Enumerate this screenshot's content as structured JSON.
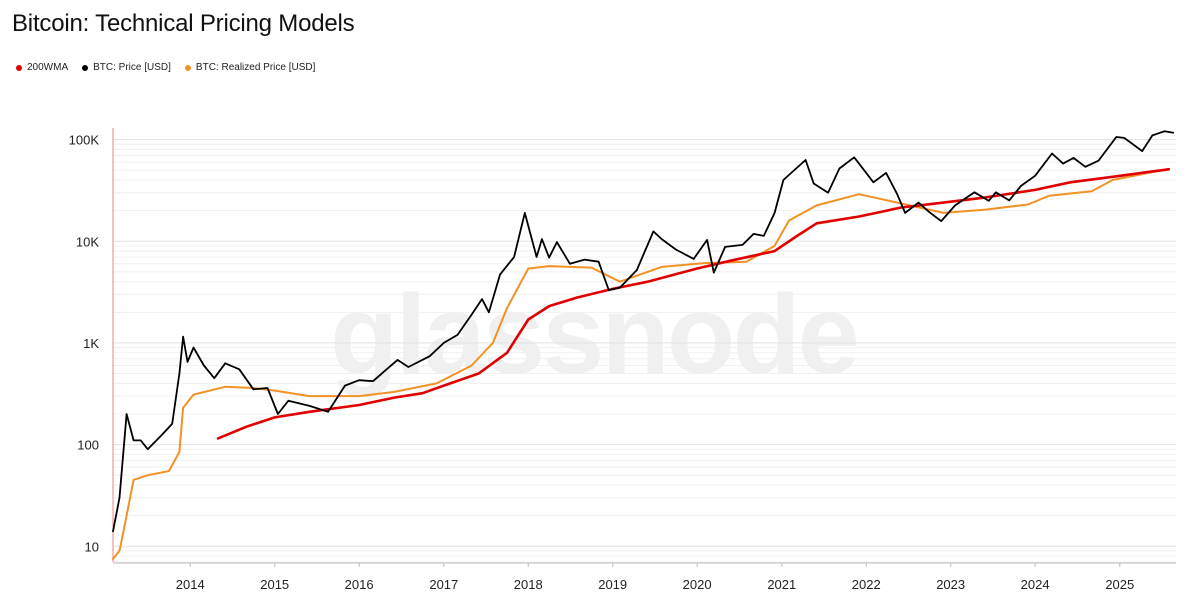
{
  "chart_data": {
    "type": "line",
    "title": "Bitcoin: Technical Pricing Models",
    "y_scale": "log",
    "ylim": [
      7,
      130000
    ],
    "xlim": [
      "2013-02-01",
      "2025-09-01"
    ],
    "grid": true,
    "legend_position": "top-left",
    "y_ticks": [
      {
        "value": 10,
        "label": "10"
      },
      {
        "value": 100,
        "label": "100"
      },
      {
        "value": 1000,
        "label": "1K"
      },
      {
        "value": 10000,
        "label": "10K"
      },
      {
        "value": 100000,
        "label": "100K"
      }
    ],
    "x_ticks": [
      "2014",
      "2015",
      "2016",
      "2017",
      "2018",
      "2019",
      "2020",
      "2021",
      "2022",
      "2023",
      "2024",
      "2025"
    ],
    "series": [
      {
        "name": "200WMA",
        "color": "#e00000",
        "points": [
          [
            "2014-05-01",
            115
          ],
          [
            "2014-09-01",
            150
          ],
          [
            "2015-01-01",
            185
          ],
          [
            "2015-06-01",
            210
          ],
          [
            "2016-01-01",
            245
          ],
          [
            "2016-06-01",
            290
          ],
          [
            "2016-10-01",
            320
          ],
          [
            "2017-01-01",
            380
          ],
          [
            "2017-06-01",
            500
          ],
          [
            "2017-10-01",
            800
          ],
          [
            "2018-01-01",
            1700
          ],
          [
            "2018-04-01",
            2300
          ],
          [
            "2018-08-01",
            2800
          ],
          [
            "2019-01-01",
            3400
          ],
          [
            "2019-06-01",
            4000
          ],
          [
            "2020-01-01",
            5400
          ],
          [
            "2020-06-01",
            6500
          ],
          [
            "2020-12-01",
            8000
          ],
          [
            "2021-03-01",
            11000
          ],
          [
            "2021-06-01",
            15000
          ],
          [
            "2021-12-01",
            17500
          ],
          [
            "2022-06-01",
            21500
          ],
          [
            "2022-12-01",
            24000
          ],
          [
            "2023-06-01",
            27000
          ],
          [
            "2024-01-01",
            32000
          ],
          [
            "2024-06-01",
            38000
          ],
          [
            "2024-12-01",
            43000
          ],
          [
            "2025-08-01",
            51000
          ]
        ]
      },
      {
        "name": "BTC: Price [USD]",
        "color": "#000000",
        "points": [
          [
            "2013-02-01",
            14
          ],
          [
            "2013-03-01",
            30
          ],
          [
            "2013-04-01",
            200
          ],
          [
            "2013-05-01",
            110
          ],
          [
            "2013-06-01",
            110
          ],
          [
            "2013-07-01",
            90
          ],
          [
            "2013-09-01",
            125
          ],
          [
            "2013-10-15",
            160
          ],
          [
            "2013-11-15",
            500
          ],
          [
            "2013-12-01",
            1150
          ],
          [
            "2013-12-20",
            650
          ],
          [
            "2014-01-15",
            900
          ],
          [
            "2014-03-01",
            600
          ],
          [
            "2014-04-15",
            450
          ],
          [
            "2014-06-01",
            630
          ],
          [
            "2014-08-01",
            550
          ],
          [
            "2014-10-01",
            350
          ],
          [
            "2014-12-01",
            360
          ],
          [
            "2015-01-15",
            200
          ],
          [
            "2015-03-01",
            270
          ],
          [
            "2015-06-01",
            240
          ],
          [
            "2015-08-20",
            210
          ],
          [
            "2015-11-01",
            380
          ],
          [
            "2016-01-01",
            430
          ],
          [
            "2016-03-01",
            420
          ],
          [
            "2016-06-15",
            680
          ],
          [
            "2016-08-01",
            580
          ],
          [
            "2016-11-01",
            740
          ],
          [
            "2017-01-01",
            1000
          ],
          [
            "2017-03-01",
            1200
          ],
          [
            "2017-05-01",
            1900
          ],
          [
            "2017-06-15",
            2700
          ],
          [
            "2017-07-15",
            2000
          ],
          [
            "2017-09-01",
            4700
          ],
          [
            "2017-11-01",
            7000
          ],
          [
            "2017-12-17",
            19000
          ],
          [
            "2018-02-06",
            7000
          ],
          [
            "2018-03-01",
            10500
          ],
          [
            "2018-04-01",
            6900
          ],
          [
            "2018-05-05",
            9800
          ],
          [
            "2018-06-30",
            6000
          ],
          [
            "2018-09-01",
            6600
          ],
          [
            "2018-11-01",
            6300
          ],
          [
            "2018-12-15",
            3300
          ],
          [
            "2019-02-01",
            3500
          ],
          [
            "2019-04-15",
            5200
          ],
          [
            "2019-06-26",
            12500
          ],
          [
            "2019-08-01",
            10500
          ],
          [
            "2019-10-01",
            8300
          ],
          [
            "2019-12-17",
            6700
          ],
          [
            "2020-02-13",
            10300
          ],
          [
            "2020-03-13",
            4900
          ],
          [
            "2020-05-01",
            8800
          ],
          [
            "2020-07-15",
            9200
          ],
          [
            "2020-09-01",
            11800
          ],
          [
            "2020-10-15",
            11300
          ],
          [
            "2020-12-01",
            19000
          ],
          [
            "2021-01-08",
            40000
          ],
          [
            "2021-02-15",
            48000
          ],
          [
            "2021-04-14",
            63000
          ],
          [
            "2021-05-19",
            37000
          ],
          [
            "2021-07-20",
            30000
          ],
          [
            "2021-09-07",
            52000
          ],
          [
            "2021-11-10",
            67000
          ],
          [
            "2022-01-01",
            47000
          ],
          [
            "2022-02-01",
            38000
          ],
          [
            "2022-03-28",
            47000
          ],
          [
            "2022-05-15",
            29000
          ],
          [
            "2022-06-18",
            19000
          ],
          [
            "2022-08-15",
            24000
          ],
          [
            "2022-10-01",
            19300
          ],
          [
            "2022-11-21",
            15800
          ],
          [
            "2023-01-20",
            22500
          ],
          [
            "2023-04-14",
            30300
          ],
          [
            "2023-06-15",
            25000
          ],
          [
            "2023-07-15",
            30300
          ],
          [
            "2023-09-11",
            25200
          ],
          [
            "2023-11-01",
            35000
          ],
          [
            "2024-01-01",
            44000
          ],
          [
            "2024-03-14",
            73000
          ],
          [
            "2024-05-01",
            58000
          ],
          [
            "2024-06-15",
            66000
          ],
          [
            "2024-08-05",
            54000
          ],
          [
            "2024-10-01",
            62000
          ],
          [
            "2024-12-17",
            106000
          ],
          [
            "2025-01-20",
            104000
          ],
          [
            "2025-04-08",
            77000
          ],
          [
            "2025-05-22",
            110000
          ],
          [
            "2025-07-14",
            121000
          ],
          [
            "2025-08-20",
            117000
          ]
        ]
      },
      {
        "name": "BTC: Realized Price [USD]",
        "color": "#f29224",
        "points": [
          [
            "2013-02-01",
            7.5
          ],
          [
            "2013-03-01",
            9
          ],
          [
            "2013-04-01",
            20
          ],
          [
            "2013-05-01",
            45
          ],
          [
            "2013-07-01",
            50
          ],
          [
            "2013-10-01",
            55
          ],
          [
            "2013-11-15",
            85
          ],
          [
            "2013-12-01",
            230
          ],
          [
            "2014-01-15",
            310
          ],
          [
            "2014-06-01",
            370
          ],
          [
            "2014-10-01",
            360
          ],
          [
            "2015-01-01",
            340
          ],
          [
            "2015-06-01",
            300
          ],
          [
            "2016-01-01",
            300
          ],
          [
            "2016-06-01",
            330
          ],
          [
            "2016-12-01",
            400
          ],
          [
            "2017-05-01",
            600
          ],
          [
            "2017-08-01",
            1000
          ],
          [
            "2017-10-01",
            2200
          ],
          [
            "2018-01-01",
            5400
          ],
          [
            "2018-04-01",
            5700
          ],
          [
            "2018-10-01",
            5500
          ],
          [
            "2019-02-01",
            4000
          ],
          [
            "2019-08-01",
            5600
          ],
          [
            "2020-02-01",
            6100
          ],
          [
            "2020-08-01",
            6300
          ],
          [
            "2020-12-01",
            9000
          ],
          [
            "2021-02-01",
            16000
          ],
          [
            "2021-06-01",
            22500
          ],
          [
            "2021-12-01",
            29000
          ],
          [
            "2022-06-01",
            23500
          ],
          [
            "2022-12-01",
            19000
          ],
          [
            "2023-06-01",
            20500
          ],
          [
            "2023-12-01",
            23000
          ],
          [
            "2024-03-01",
            28000
          ],
          [
            "2024-09-01",
            31000
          ],
          [
            "2024-12-01",
            40000
          ],
          [
            "2025-08-01",
            51500
          ]
        ]
      }
    ]
  },
  "watermark": "glassnode"
}
